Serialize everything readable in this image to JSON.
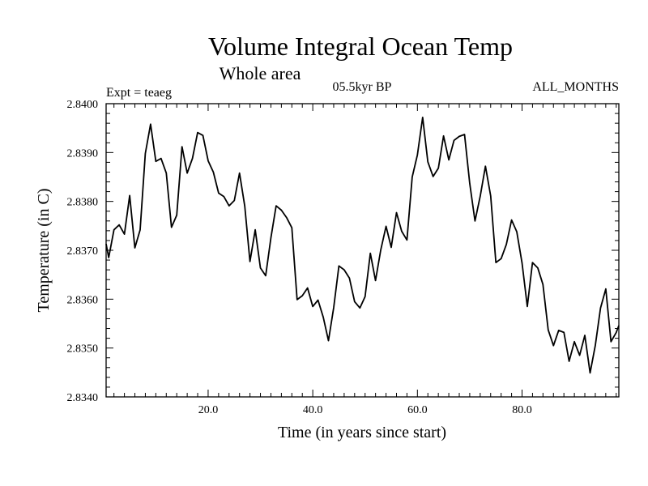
{
  "chart_data": {
    "type": "line",
    "title": "Volume Integral Ocean Temp",
    "subtitle": "Whole area",
    "period": "05.5kyr BP",
    "expt": "Expt = teaeg",
    "months": "ALL_MONTHS",
    "xlabel": "Time (in years since start)",
    "ylabel": "Temperature (in C)",
    "xlim": [
      0.5,
      98.5
    ],
    "ylim": [
      2.834,
      2.84
    ],
    "xticks": [
      20,
      40,
      60,
      80
    ],
    "xtick_labels": [
      "20.0",
      "40.0",
      "60.0",
      "80.0"
    ],
    "yticks": [
      2.834,
      2.835,
      2.836,
      2.837,
      2.838,
      2.839,
      2.84
    ],
    "ytick_labels": [
      "2.8340",
      "2.8350",
      "2.8360",
      "2.8370",
      "2.8380",
      "2.8390",
      "2.8400"
    ],
    "grid": false,
    "series": [
      {
        "name": "teaeg",
        "x": [
          1,
          2,
          3,
          4,
          5,
          6,
          7,
          8,
          9,
          10,
          11,
          12,
          13,
          14,
          15,
          16,
          17,
          18,
          19,
          20,
          21,
          22,
          23,
          24,
          25,
          26,
          27,
          28,
          29,
          30,
          31,
          32,
          33,
          34,
          35,
          36,
          37,
          38,
          39,
          40,
          41,
          42,
          43,
          44,
          45,
          46,
          47,
          48,
          49,
          50,
          51,
          52,
          53,
          54,
          55,
          56,
          57,
          58,
          59,
          60,
          61,
          62,
          63,
          64,
          65,
          66,
          67,
          68,
          69,
          70,
          71,
          72,
          73,
          74,
          75,
          76,
          77,
          78,
          79,
          80,
          81,
          82,
          83,
          84,
          85,
          86,
          87,
          88,
          89,
          90,
          91,
          92,
          93,
          94,
          95,
          96,
          97,
          98
        ],
        "values": [
          2.83685,
          2.83742,
          2.83752,
          2.83733,
          2.83812,
          2.83705,
          2.83742,
          2.83898,
          2.83958,
          2.83882,
          2.83888,
          2.83858,
          2.83747,
          2.83772,
          2.83912,
          2.83858,
          2.83888,
          2.83941,
          2.83935,
          2.83883,
          2.8386,
          2.83817,
          2.8381,
          2.83791,
          2.83802,
          2.83858,
          2.8379,
          2.83677,
          2.83742,
          2.83664,
          2.83648,
          2.83726,
          2.83791,
          2.83782,
          2.83767,
          2.83746,
          2.83599,
          2.83607,
          2.83623,
          2.83585,
          2.83598,
          2.83563,
          2.83515,
          2.83583,
          2.83668,
          2.8366,
          2.83643,
          2.83595,
          2.83582,
          2.83605,
          2.83694,
          2.83638,
          2.83701,
          2.83749,
          2.83706,
          2.83777,
          2.83739,
          2.83721,
          2.8385,
          2.83895,
          2.83972,
          2.83881,
          2.83851,
          2.83868,
          2.83934,
          2.83885,
          2.83925,
          2.83933,
          2.83937,
          2.83837,
          2.8376,
          2.8381,
          2.83872,
          2.83811,
          2.83675,
          2.83683,
          2.83712,
          2.83762,
          2.83738,
          2.83674,
          2.83585,
          2.83675,
          2.83664,
          2.8363,
          2.83537,
          2.83505,
          2.83536,
          2.83532,
          2.83473,
          2.83513,
          2.83485,
          2.83526,
          2.83449,
          2.83505,
          2.83582,
          2.83621,
          2.83513,
          2.83532
        ]
      }
    ]
  }
}
